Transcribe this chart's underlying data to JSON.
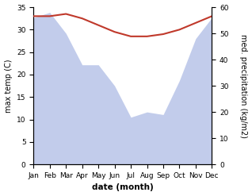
{
  "months": [
    "Jan",
    "Feb",
    "Mar",
    "Apr",
    "May",
    "Jun",
    "Jul",
    "Aug",
    "Sep",
    "Oct",
    "Nov",
    "Dec"
  ],
  "month_indices": [
    0,
    1,
    2,
    3,
    4,
    5,
    6,
    7,
    8,
    9,
    10,
    11
  ],
  "temperature": [
    33.0,
    33.0,
    33.5,
    32.5,
    31.0,
    29.5,
    28.5,
    28.5,
    29.0,
    30.0,
    31.5,
    33.0
  ],
  "precipitation": [
    56,
    58,
    50,
    38,
    38,
    30,
    18,
    20,
    19,
    32,
    48,
    56
  ],
  "temp_color": "#c0392b",
  "precip_fill_color": "#b8c4e8",
  "ylabel_left": "max temp (C)",
  "ylabel_right": "med. precipitation (kg/m2)",
  "xlabel": "date (month)",
  "ylim_left": [
    0,
    35
  ],
  "ylim_right": [
    0,
    60
  ],
  "tick_fontsize": 6.5,
  "label_fontsize": 7,
  "xlabel_fontsize": 7.5
}
